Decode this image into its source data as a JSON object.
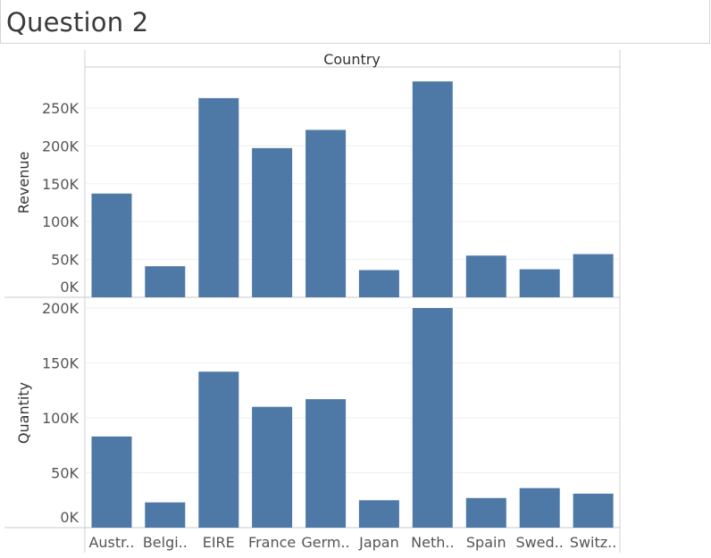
{
  "page": {
    "title": "Question 2"
  },
  "chart_data": {
    "type": "bar",
    "column_header": "Country",
    "categories": [
      "Austr..",
      "Belgi..",
      "EIRE",
      "France",
      "Germ..",
      "Japan",
      "Neth..",
      "Spain",
      "Swed..",
      "Switz.."
    ],
    "series": [
      {
        "name": "Revenue",
        "values": [
          137000,
          41000,
          263000,
          197000,
          221000,
          36000,
          285000,
          55000,
          37000,
          57000
        ],
        "ylim": [
          0,
          290000
        ],
        "ticks": [
          0,
          50000,
          100000,
          150000,
          200000,
          250000
        ],
        "tick_labels": [
          "0K",
          "50K",
          "100K",
          "150K",
          "200K",
          "250K"
        ]
      },
      {
        "name": "Quantity",
        "values": [
          83000,
          23000,
          142000,
          110000,
          117000,
          25000,
          200000,
          27000,
          36000,
          31000
        ],
        "ylim": [
          0,
          200000
        ],
        "ticks": [
          0,
          50000,
          100000,
          150000,
          200000
        ],
        "tick_labels": [
          "0K",
          "50K",
          "100K",
          "150K",
          "200K"
        ]
      }
    ],
    "bar_color": "#4e79a7",
    "grid": true
  }
}
